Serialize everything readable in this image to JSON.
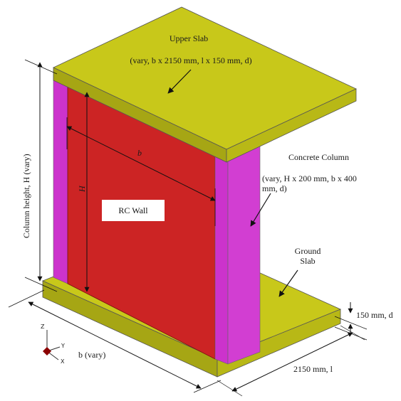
{
  "labels": {
    "upper_slab_title": "Upper Slab",
    "upper_slab_spec": "(vary, b x 2150 mm, l x 150 mm, d)",
    "concrete_column_title": "Concrete Column",
    "concrete_column_spec_line1": "(vary, H x 200 mm, b x 400",
    "concrete_column_spec_line2": "mm, d)",
    "ground_slab_line1": "Ground",
    "ground_slab_line2": "Slab",
    "rc_wall": "RC Wall",
    "dim_b": "b",
    "dim_H": "H",
    "column_height": "Column height, H (vary)",
    "thickness": "150 mm, d",
    "length_dim": "2150 mm, l",
    "width_dim": "b (vary)"
  },
  "axes": {
    "z": "Z",
    "y": "Y",
    "x": "X"
  },
  "colors": {
    "slab": "#c8c81a",
    "column": "#cc33cc",
    "wall": "#cc2424",
    "wall_edge": "#7a1010",
    "outline": "#444444"
  }
}
